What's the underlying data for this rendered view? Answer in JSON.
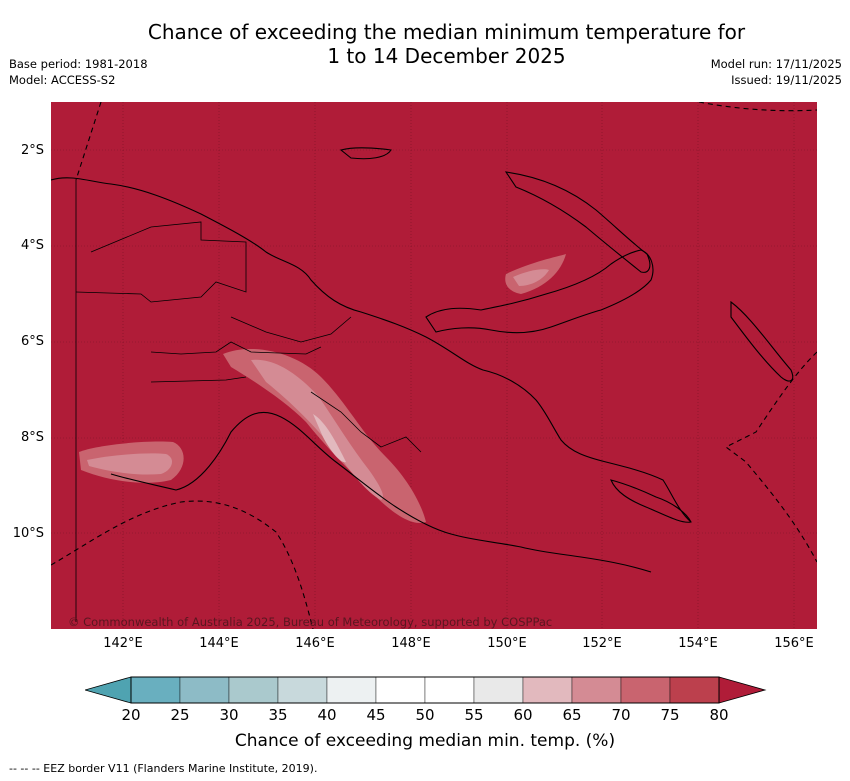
{
  "title_line1": "Chance of exceeding the median minimum temperature for",
  "title_line2": "1 to 14 December 2025",
  "base_period": "Base period: 1981-2018",
  "model": "Model: ACCESS-S2",
  "model_run": "Model run: 17/11/2025",
  "issued": "Issued: 19/11/2025",
  "copyright": "© Commonwealth of Australia 2025, Bureau of Meteorology, supported by COSPPac",
  "lat_labels": [
    "2°S",
    "4°S",
    "6°S",
    "8°S",
    "10°S"
  ],
  "lon_labels": [
    "142°E",
    "144°E",
    "146°E",
    "148°E",
    "150°E",
    "152°E",
    "154°E",
    "156°E"
  ],
  "colorbar": {
    "title": "Chance of exceeding median min. temp. (%)",
    "ticks": [
      "20",
      "25",
      "30",
      "35",
      "40",
      "45",
      "50",
      "55",
      "60",
      "65",
      "70",
      "75",
      "80"
    ],
    "colors": [
      "#4fa3b1",
      "#69afbf",
      "#8dbbc6",
      "#aac9cd",
      "#c8d9dc",
      "#edf1f2",
      "#ffffff",
      "#ffffff",
      "#e9e9e9",
      "#e2b9be",
      "#d48b94",
      "#c9646f",
      "#bc404d",
      "#b01c38"
    ],
    "map_fill": "#b01c38"
  },
  "footnote": "-- -- -- EEZ border V11 (Flanders Marine Institute, 2019)."
}
